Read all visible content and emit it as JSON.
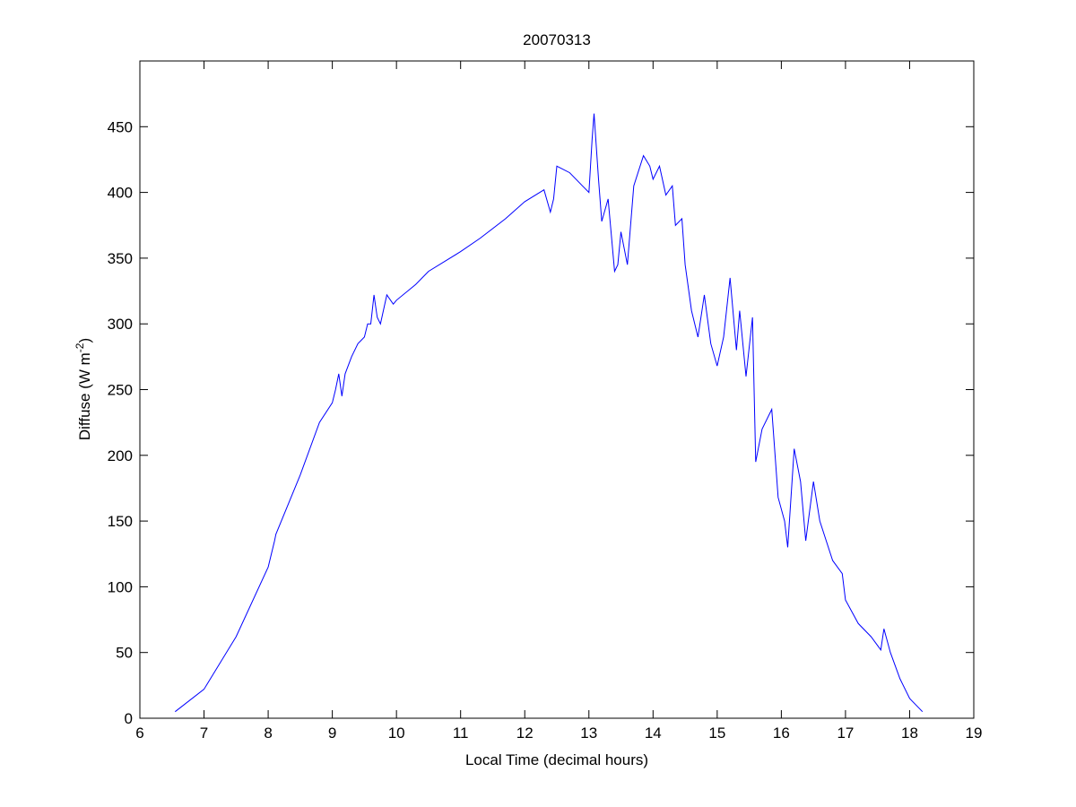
{
  "chart_data": {
    "type": "line",
    "title": "20070313",
    "xlabel": "Local Time (decimal hours)",
    "ylabel": "Diffuse (W m",
    "ylabel_superscript": "-2",
    "ylabel_suffix": ")",
    "xlim": [
      6,
      19
    ],
    "ylim": [
      0,
      500
    ],
    "xticks": [
      6,
      7,
      8,
      9,
      10,
      11,
      12,
      13,
      14,
      15,
      16,
      17,
      18,
      19
    ],
    "yticks": [
      0,
      50,
      100,
      150,
      200,
      250,
      300,
      350,
      400,
      450
    ],
    "grid": false,
    "series": [
      {
        "name": "Diffuse",
        "color": "#0000ff",
        "x": [
          6.55,
          7,
          7.5,
          8,
          8.1,
          8.12,
          8.5,
          8.8,
          9,
          9.05,
          9.1,
          9.15,
          9.2,
          9.3,
          9.4,
          9.5,
          9.55,
          9.6,
          9.65,
          9.7,
          9.75,
          9.85,
          9.95,
          10,
          10.3,
          10.5,
          11,
          11.3,
          11.7,
          12,
          12.3,
          12.4,
          12.45,
          12.5,
          12.7,
          12.9,
          13,
          13.05,
          13.08,
          13.15,
          13.2,
          13.3,
          13.4,
          13.45,
          13.5,
          13.6,
          13.7,
          13.85,
          13.95,
          14,
          14.1,
          14.2,
          14.3,
          14.35,
          14.45,
          14.5,
          14.6,
          14.7,
          14.8,
          14.9,
          15,
          15.1,
          15.2,
          15.3,
          15.35,
          15.45,
          15.55,
          15.6,
          15.7,
          15.85,
          15.95,
          16.05,
          16.1,
          16.2,
          16.3,
          16.38,
          16.5,
          16.6,
          16.8,
          16.95,
          17,
          17.2,
          17.4,
          17.55,
          17.6,
          17.7,
          17.85,
          18,
          18.2
        ],
        "y": [
          5,
          22,
          62,
          115,
          135,
          140,
          185,
          225,
          240,
          250,
          262,
          245,
          262,
          275,
          285,
          290,
          300,
          300,
          322,
          305,
          300,
          322,
          315,
          318,
          330,
          340,
          355,
          365,
          380,
          393,
          402,
          385,
          395,
          420,
          415,
          405,
          400,
          440,
          460,
          410,
          378,
          395,
          340,
          345,
          370,
          345,
          405,
          428,
          420,
          410,
          420,
          398,
          405,
          375,
          380,
          345,
          310,
          290,
          322,
          285,
          268,
          290,
          335,
          280,
          310,
          260,
          305,
          195,
          220,
          235,
          168,
          150,
          130,
          205,
          180,
          135,
          180,
          150,
          120,
          110,
          90,
          72,
          62,
          52,
          68,
          50,
          30,
          15,
          5
        ]
      }
    ]
  }
}
